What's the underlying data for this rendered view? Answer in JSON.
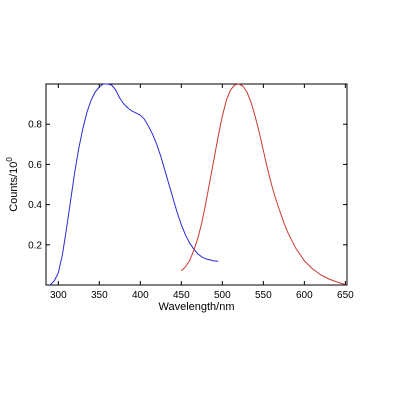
{
  "chart_data": {
    "type": "line",
    "xlabel": "Wavelength/nm",
    "ylabel_base": "Counts/10",
    "ylabel_exponent": "0",
    "xlim": [
      285,
      652
    ],
    "ylim": [
      0,
      1.0
    ],
    "xticks": [
      300,
      350,
      400,
      450,
      500,
      550,
      600,
      650
    ],
    "xtick_labels": [
      "300",
      "350",
      "400",
      "450",
      "500",
      "550",
      "600",
      "650"
    ],
    "yticks": [
      0.2,
      0.4,
      0.6,
      0.8
    ],
    "ytick_labels": [
      "0.2",
      "0.4",
      "0.6",
      "0.8"
    ],
    "grid": false,
    "series": [
      {
        "color": "#2a2ad0",
        "points": [
          [
            290,
            0.0
          ],
          [
            295,
            0.02
          ],
          [
            300,
            0.06
          ],
          [
            305,
            0.15
          ],
          [
            310,
            0.28
          ],
          [
            315,
            0.42
          ],
          [
            320,
            0.56
          ],
          [
            325,
            0.68
          ],
          [
            330,
            0.78
          ],
          [
            335,
            0.86
          ],
          [
            340,
            0.92
          ],
          [
            345,
            0.96
          ],
          [
            350,
            0.985
          ],
          [
            355,
            1.0
          ],
          [
            360,
            1.0
          ],
          [
            365,
            0.995
          ],
          [
            370,
            0.97
          ],
          [
            375,
            0.93
          ],
          [
            380,
            0.9
          ],
          [
            385,
            0.88
          ],
          [
            390,
            0.865
          ],
          [
            395,
            0.855
          ],
          [
            400,
            0.845
          ],
          [
            405,
            0.825
          ],
          [
            410,
            0.79
          ],
          [
            415,
            0.75
          ],
          [
            420,
            0.7
          ],
          [
            425,
            0.64
          ],
          [
            430,
            0.57
          ],
          [
            435,
            0.5
          ],
          [
            440,
            0.43
          ],
          [
            445,
            0.36
          ],
          [
            450,
            0.3
          ],
          [
            455,
            0.25
          ],
          [
            460,
            0.21
          ],
          [
            465,
            0.18
          ],
          [
            470,
            0.155
          ],
          [
            475,
            0.14
          ],
          [
            480,
            0.13
          ],
          [
            485,
            0.125
          ],
          [
            490,
            0.12
          ],
          [
            495,
            0.118
          ]
        ]
      },
      {
        "color": "#c83a32",
        "points": [
          [
            450,
            0.07
          ],
          [
            455,
            0.09
          ],
          [
            460,
            0.12
          ],
          [
            465,
            0.17
          ],
          [
            470,
            0.23
          ],
          [
            475,
            0.31
          ],
          [
            480,
            0.41
          ],
          [
            485,
            0.52
          ],
          [
            490,
            0.63
          ],
          [
            495,
            0.74
          ],
          [
            500,
            0.84
          ],
          [
            505,
            0.92
          ],
          [
            510,
            0.97
          ],
          [
            515,
            0.995
          ],
          [
            520,
            1.0
          ],
          [
            525,
            0.99
          ],
          [
            530,
            0.96
          ],
          [
            535,
            0.91
          ],
          [
            540,
            0.84
          ],
          [
            545,
            0.76
          ],
          [
            550,
            0.67
          ],
          [
            555,
            0.58
          ],
          [
            560,
            0.5
          ],
          [
            565,
            0.43
          ],
          [
            570,
            0.37
          ],
          [
            575,
            0.31
          ],
          [
            580,
            0.26
          ],
          [
            585,
            0.22
          ],
          [
            590,
            0.18
          ],
          [
            595,
            0.15
          ],
          [
            600,
            0.12
          ],
          [
            605,
            0.1
          ],
          [
            610,
            0.08
          ],
          [
            615,
            0.065
          ],
          [
            620,
            0.05
          ],
          [
            625,
            0.04
          ],
          [
            630,
            0.03
          ],
          [
            635,
            0.022
          ],
          [
            640,
            0.015
          ],
          [
            645,
            0.008
          ],
          [
            650,
            0.003
          ]
        ]
      }
    ]
  }
}
